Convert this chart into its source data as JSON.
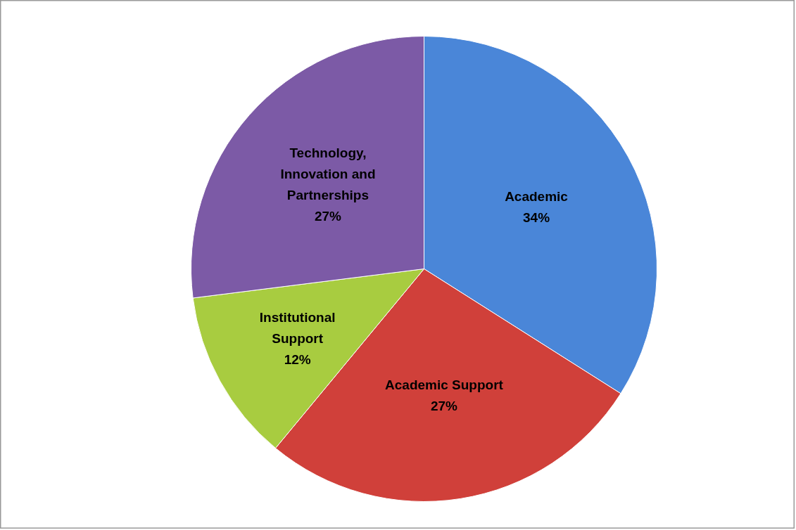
{
  "chart_data": {
    "type": "pie",
    "categories": [
      "Academic",
      "Academic Support",
      "Institutional Support",
      "Technology, Innovation and Partnerships"
    ],
    "values": [
      34,
      27,
      12,
      27
    ],
    "value_labels": [
      "34%",
      "27%",
      "12%",
      "27%"
    ],
    "colors": [
      "#4a86d8",
      "#d0403a",
      "#a8cc40",
      "#7c5aa6"
    ],
    "legend": false
  }
}
